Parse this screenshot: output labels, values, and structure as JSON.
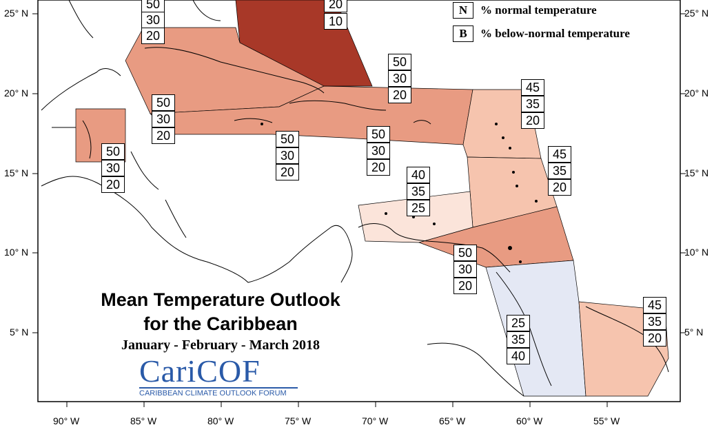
{
  "title": {
    "line1": "Mean Temperature Outlook",
    "line2": "for the Caribbean",
    "period": "January - February - March 2018"
  },
  "legend": [
    {
      "key": "N",
      "text": "% normal temperature"
    },
    {
      "key": "B",
      "text": "% below-normal temperature"
    }
  ],
  "logo": {
    "main": "CariCOF",
    "sub": "CARIBBEAN CLIMATE OUTLOOK FORUM"
  },
  "latitude_labels": {
    "left": [
      "25° N",
      "20° N",
      "15° N",
      "10° N",
      "5° N"
    ],
    "right": [
      "25° N",
      "20° N",
      "15° N",
      "10° N",
      "5° N"
    ]
  },
  "longitude_labels": [
    "90° W",
    "85° W",
    "80° W",
    "75° W",
    "70° W",
    "65° W",
    "60° W",
    "55° W"
  ],
  "colors": {
    "50_above": "#e89b82",
    "40_above": "#fbe4da",
    "45_above": "#f6c4ae",
    "bahamas_high": "#a83828",
    "below": "#e4e8f4",
    "outline": "#000000"
  },
  "forecast_boxes": [
    {
      "region": "bahamas-west",
      "values": [
        "50",
        "30",
        "20"
      ]
    },
    {
      "region": "bahamas-east",
      "values": [
        "20",
        "10"
      ]
    },
    {
      "region": "cuba",
      "values": [
        "50",
        "30",
        "20"
      ]
    },
    {
      "region": "belize",
      "values": [
        "50",
        "30",
        "20"
      ]
    },
    {
      "region": "jamaica",
      "values": [
        "50",
        "30",
        "20"
      ]
    },
    {
      "region": "hispaniola",
      "values": [
        "50",
        "30",
        "20"
      ]
    },
    {
      "region": "puerto-rico-north",
      "values": [
        "50",
        "30",
        "20"
      ]
    },
    {
      "region": "leeward",
      "values": [
        "45",
        "35",
        "20"
      ]
    },
    {
      "region": "windward",
      "values": [
        "45",
        "35",
        "20"
      ]
    },
    {
      "region": "abc-islands",
      "values": [
        "40",
        "35",
        "25"
      ]
    },
    {
      "region": "trinidad",
      "values": [
        "50",
        "30",
        "20"
      ]
    },
    {
      "region": "guyana",
      "values": [
        "25",
        "35",
        "40"
      ]
    },
    {
      "region": "french-guiana",
      "values": [
        "45",
        "35",
        "20"
      ]
    }
  ]
}
